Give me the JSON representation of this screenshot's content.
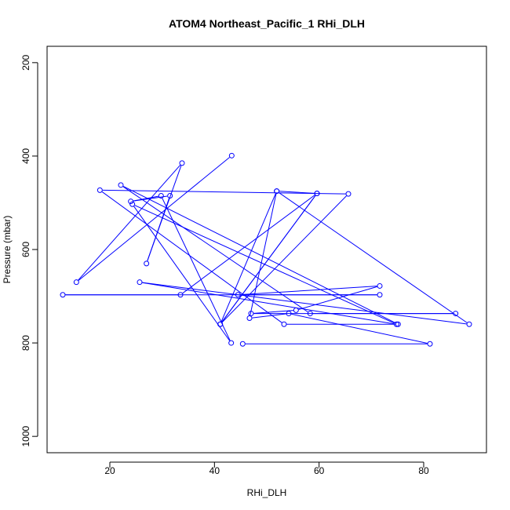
{
  "chart_data": {
    "type": "line",
    "title": "ATOM4 Northeast_Pacific_1 RHi_DLH",
    "xlabel": "RHi_DLH",
    "ylabel": "Pressure (mbar)",
    "xlim": [
      8,
      92
    ],
    "ylim": [
      1035,
      165
    ],
    "y_reversed": true,
    "x_ticks": [
      20,
      40,
      60,
      80
    ],
    "y_ticks": [
      200,
      400,
      600,
      800,
      1000
    ],
    "grid": false,
    "line_color": "#0000ff",
    "marker": "open-circle",
    "series": [
      {
        "values": [
          [
            43.3,
            399
          ],
          [
            13.6,
            670
          ],
          [
            33.8,
            415
          ],
          [
            27.0,
            630
          ],
          [
            31.5,
            485
          ],
          [
            24.0,
            497
          ],
          [
            29.8,
            485
          ],
          [
            43.2,
            800
          ],
          [
            24.3,
            503
          ],
          [
            74.8,
            760
          ],
          [
            25.7,
            670
          ],
          [
            88.7,
            760
          ],
          [
            51.9,
            475
          ],
          [
            59.6,
            480
          ],
          [
            41.1,
            760
          ],
          [
            65.6,
            481
          ],
          [
            18.1,
            473
          ],
          [
            53.3,
            760
          ],
          [
            75.1,
            760
          ],
          [
            22.1,
            462
          ],
          [
            58.3,
            737
          ],
          [
            86.1,
            737
          ],
          [
            47.0,
            737
          ],
          [
            55.6,
            730
          ],
          [
            71.6,
            678
          ],
          [
            44.5,
            697
          ],
          [
            71.6,
            697
          ],
          [
            11.0,
            697
          ],
          [
            33.5,
            697
          ],
          [
            59.6,
            480
          ],
          [
            41.1,
            760
          ],
          [
            51.9,
            475
          ],
          [
            46.7,
            747
          ],
          [
            54.2,
            737
          ],
          [
            81.2,
            802
          ],
          [
            45.4,
            802
          ]
        ]
      }
    ]
  }
}
